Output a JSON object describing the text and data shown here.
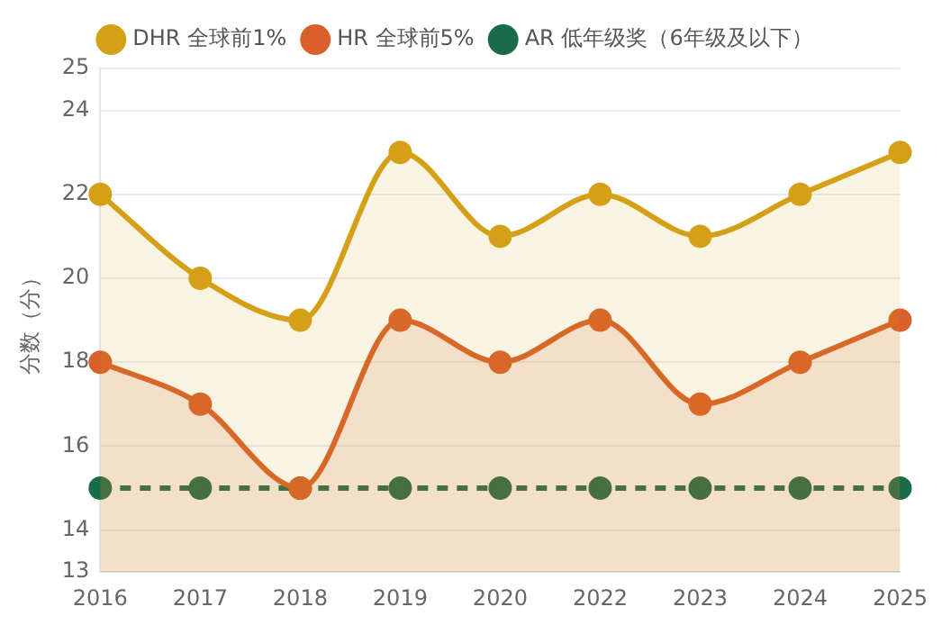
{
  "chart_data": {
    "type": "line",
    "ylabel": "分数（分）",
    "categories": [
      "2016",
      "2017",
      "2018",
      "2019",
      "2020",
      "2022",
      "2023",
      "2024",
      "2025"
    ],
    "series": [
      {
        "name": "DHR 全球前1%",
        "type": "area",
        "color": "#d4a017",
        "values": [
          22,
          20,
          19,
          23,
          21,
          22,
          21,
          22,
          23
        ]
      },
      {
        "name": "HR 全球前5%",
        "type": "area",
        "color": "#d9602b",
        "values": [
          18,
          17,
          15,
          19,
          18,
          19,
          17,
          18,
          19
        ]
      },
      {
        "name": "AR 低年级奖（6年级及以下）",
        "type": "line",
        "color": "#1a6b4a",
        "line_style": "dashed",
        "values": [
          15,
          15,
          15,
          15,
          15,
          15,
          15,
          15,
          15
        ]
      }
    ],
    "ylim": [
      13,
      25
    ],
    "yticks": [
      13,
      14,
      16,
      18,
      20,
      22,
      24,
      25
    ],
    "grid": "y",
    "legend": "top",
    "marker": "circle"
  }
}
